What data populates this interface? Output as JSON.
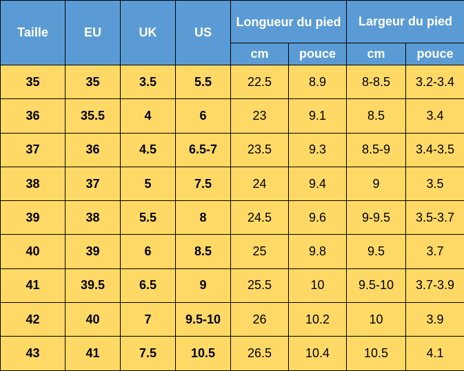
{
  "header": {
    "size": "Taille",
    "eu": "EU",
    "uk": "UK",
    "us": "US",
    "length": "Longueur du pied",
    "width": "Largeur du pied",
    "cm_label": "cm",
    "inch_label": "pouce"
  },
  "colors": {
    "header_bg": "#5b9bd5",
    "header_text": "#ffffff",
    "cell_bg": "#ffd966",
    "border": "#000000"
  },
  "rows": [
    {
      "size": "35",
      "eu": "35",
      "uk": "3.5",
      "us": "5.5",
      "len_cm": "22.5",
      "len_in": "8.9",
      "wid_cm": "8-8.5",
      "wid_in": "3.2-3.4"
    },
    {
      "size": "36",
      "eu": "35.5",
      "uk": "4",
      "us": "6",
      "len_cm": "23",
      "len_in": "9.1",
      "wid_cm": "8.5",
      "wid_in": "3.4"
    },
    {
      "size": "37",
      "eu": "36",
      "uk": "4.5",
      "us": "6.5-7",
      "len_cm": "23.5",
      "len_in": "9.3",
      "wid_cm": "8.5-9",
      "wid_in": "3.4-3.5"
    },
    {
      "size": "38",
      "eu": "37",
      "uk": "5",
      "us": "7.5",
      "len_cm": "24",
      "len_in": "9.4",
      "wid_cm": "9",
      "wid_in": "3.5"
    },
    {
      "size": "39",
      "eu": "38",
      "uk": "5.5",
      "us": "8",
      "len_cm": "24.5",
      "len_in": "9.6",
      "wid_cm": "9-9.5",
      "wid_in": "3.5-3.7"
    },
    {
      "size": "40",
      "eu": "39",
      "uk": "6",
      "us": "8.5",
      "len_cm": "25",
      "len_in": "9.8",
      "wid_cm": "9.5",
      "wid_in": "3.7"
    },
    {
      "size": "41",
      "eu": "39.5",
      "uk": "6.5",
      "us": "9",
      "len_cm": "25.5",
      "len_in": "10",
      "wid_cm": "9.5-10",
      "wid_in": "3.7-3.9"
    },
    {
      "size": "42",
      "eu": "40",
      "uk": "7",
      "us": "9.5-10",
      "len_cm": "26",
      "len_in": "10.2",
      "wid_cm": "10",
      "wid_in": "3.9"
    },
    {
      "size": "43",
      "eu": "41",
      "uk": "7.5",
      "us": "10.5",
      "len_cm": "26.5",
      "len_in": "10.4",
      "wid_cm": "10.5",
      "wid_in": "4.1"
    }
  ]
}
